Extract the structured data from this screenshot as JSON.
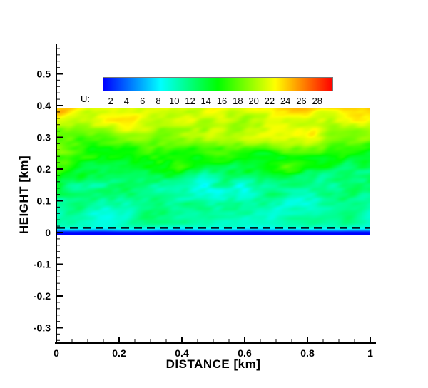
{
  "chart_data": {
    "type": "heatmap",
    "title": "",
    "xlabel": "DISTANCE [km]",
    "ylabel": "HEIGHT [km]",
    "grid": false,
    "background_color": "#ffffff",
    "axis_color": "#000000",
    "x_axis": {
      "range_km": [
        0,
        1.018
      ],
      "tick_values": [
        0,
        0.2,
        0.4,
        0.6,
        0.8,
        1
      ],
      "tick_labels": [
        "0",
        "0.2",
        "0.4",
        "0.6",
        "0.8",
        "1"
      ],
      "minor_tick_step_km": 0.05
    },
    "y_axis": {
      "range_km": [
        -0.348,
        0.593
      ],
      "tick_values": [
        0.5,
        0.4,
        0.3,
        0.2,
        0.1,
        0,
        -0.1,
        -0.2,
        -0.3
      ],
      "tick_labels": [
        "0.5",
        "0.4",
        "0.3",
        "0.2",
        "0.1",
        "0",
        "-0.1",
        "-0.2",
        "-0.3"
      ],
      "minor_tick_step_km": 0.02
    },
    "colorbar": {
      "label": "U:",
      "value_range": [
        1,
        30
      ],
      "tick_values": [
        2,
        4,
        6,
        8,
        10,
        12,
        14,
        16,
        18,
        20,
        22,
        24,
        26,
        28
      ],
      "tick_labels": [
        "2",
        "4",
        "6",
        "8",
        "10",
        "12",
        "14",
        "16",
        "18",
        "20",
        "22",
        "24",
        "26",
        "28"
      ],
      "gradient_stops": [
        "#0000ff",
        "#00ffff",
        "#00ff00",
        "#ffff00",
        "#ff0000"
      ],
      "border_color": "#777777",
      "position": "top-inside"
    },
    "field": {
      "quantity": "U",
      "x_extent_km": [
        0,
        1
      ],
      "height_extent_km": [
        0,
        0.391
      ],
      "mean_profile_height_vs_U": [
        [
          0,
          1.2
        ],
        [
          0.004,
          4.0
        ],
        [
          0.008,
          7.5
        ],
        [
          0.013,
          10.0
        ],
        [
          0.02,
          11.8
        ],
        [
          0.03,
          12.8
        ],
        [
          0.05,
          13.8
        ],
        [
          0.08,
          14.8
        ],
        [
          0.12,
          16.0
        ],
        [
          0.16,
          17.5
        ],
        [
          0.2,
          19.5
        ],
        [
          0.25,
          22.0
        ],
        [
          0.3,
          24.2
        ],
        [
          0.35,
          25.8
        ],
        [
          0.391,
          26.8
        ]
      ],
      "turbulence_amplitude_height_vs_dU": [
        [
          0,
          0.3
        ],
        [
          0.01,
          0.8
        ],
        [
          0.02,
          1.2
        ],
        [
          0.05,
          2.0
        ],
        [
          0.1,
          2.8
        ],
        [
          0.2,
          3.0
        ],
        [
          0.3,
          2.6
        ],
        [
          0.391,
          2.1
        ]
      ],
      "noise_seed": 7
    },
    "dashed_reference_line": {
      "height_km": 0.015,
      "color": "#000000",
      "style": "dashed"
    }
  }
}
